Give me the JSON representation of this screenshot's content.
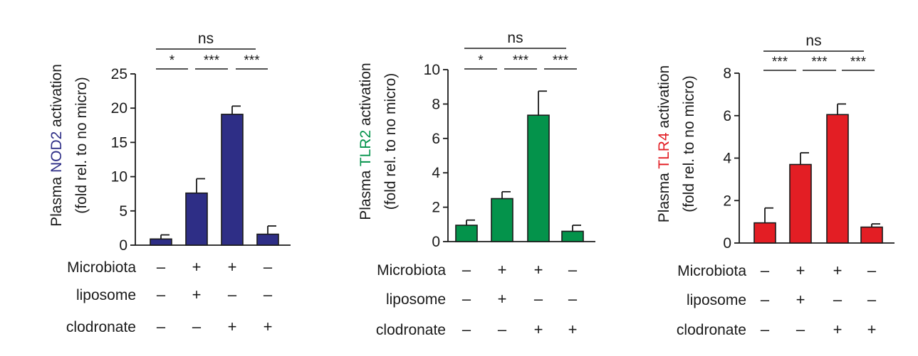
{
  "chart_data": [
    {
      "type": "bar",
      "ylabel_prefix": "Plasma",
      "ylabel_colored": "NOD2",
      "ylabel_suffix": "activation",
      "ylabel_line2": "(fold rel. to no micro)",
      "bar_color": "#2e2e86",
      "label_color": "#2e2e86",
      "ylim": [
        0,
        25
      ],
      "yticks": [
        "0",
        "5",
        "10",
        "15",
        "20",
        "25"
      ],
      "values": [
        0.9,
        7.6,
        19.1,
        1.6
      ],
      "errors": [
        0.6,
        2.1,
        1.2,
        1.2
      ],
      "significance": [
        "*",
        "***",
        "***"
      ],
      "overall": "ns"
    },
    {
      "type": "bar",
      "ylabel_prefix": "Plasma",
      "ylabel_colored": "TLR2",
      "ylabel_suffix": "activation",
      "ylabel_line2": "(fold rel. to no micro)",
      "bar_color": "#04934b",
      "label_color": "#04934b",
      "ylim": [
        0,
        10
      ],
      "yticks": [
        "0",
        "2",
        "4",
        "6",
        "8",
        "10"
      ],
      "values": [
        0.95,
        2.5,
        7.35,
        0.6
      ],
      "errors": [
        0.3,
        0.4,
        1.4,
        0.35
      ],
      "significance": [
        "*",
        "***",
        "***"
      ],
      "overall": "ns"
    },
    {
      "type": "bar",
      "ylabel_prefix": "Plasma",
      "ylabel_colored": "TLR4",
      "ylabel_suffix": "activation",
      "ylabel_line2": "(fold rel. to no micro)",
      "bar_color": "#e31e24",
      "label_color": "#e31e24",
      "ylim": [
        0,
        8
      ],
      "yticks": [
        "0",
        "2",
        "4",
        "6",
        "8"
      ],
      "values": [
        0.95,
        3.7,
        6.05,
        0.75
      ],
      "errors": [
        0.7,
        0.55,
        0.5,
        0.15
      ],
      "significance": [
        "***",
        "***",
        "***"
      ],
      "overall": "ns"
    }
  ],
  "conditions": {
    "rows": [
      {
        "label": "Microbiota",
        "signs": [
          "–",
          "+",
          "+",
          "–"
        ]
      },
      {
        "label": "liposome",
        "signs": [
          "–",
          "+",
          "–",
          "–"
        ]
      },
      {
        "label": "clodronate",
        "signs": [
          "–",
          "–",
          "+",
          "+"
        ]
      }
    ]
  }
}
